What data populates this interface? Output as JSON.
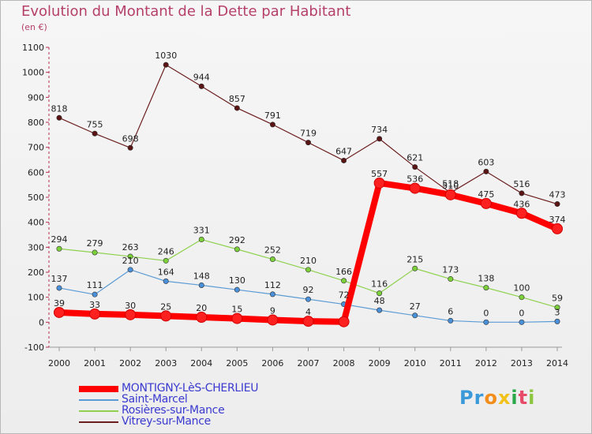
{
  "chart_data": {
    "type": "line",
    "title": "Evolution du Montant de la Dette par Habitant",
    "subtitle": "(en €)",
    "x": [
      "2000",
      "2001",
      "2002",
      "2003",
      "2004",
      "2005",
      "2006",
      "2007",
      "2008",
      "2009",
      "2010",
      "2011",
      "2012",
      "2013",
      "2014"
    ],
    "ylim": [
      -100,
      1100
    ],
    "yticks": [
      "-100",
      "0",
      "100",
      "200",
      "300",
      "400",
      "500",
      "600",
      "700",
      "800",
      "900",
      "1000",
      "1100"
    ],
    "grid": false,
    "legend_position": "bottom-left",
    "series": [
      {
        "name": "MONTIGNY-LèS-CHERLIEU",
        "color": "#ff0000",
        "marker": "#ff2020",
        "values": [
          39,
          33,
          30,
          25,
          20,
          15,
          9,
          4,
          2,
          557,
          536,
          510,
          475,
          436,
          374
        ],
        "labels": [
          "39",
          "33",
          "30",
          "25",
          "20",
          "15",
          "9",
          "4",
          "",
          "557",
          "536",
          "510",
          "475",
          "436",
          "374"
        ]
      },
      {
        "name": "Saint-Marcel",
        "color": "#5b9bd5",
        "marker": "#4a90d9",
        "values": [
          137,
          111,
          210,
          164,
          148,
          130,
          112,
          92,
          72,
          48,
          27,
          6,
          0,
          0,
          3
        ],
        "labels": [
          "137",
          "111",
          "210",
          "164",
          "148",
          "130",
          "112",
          "92",
          "72",
          "48",
          "27",
          "6",
          "0",
          "0",
          "3"
        ]
      },
      {
        "name": "Rosières-sur-Mance",
        "color": "#8fd14f",
        "marker": "#7cd13a",
        "values": [
          294,
          279,
          263,
          246,
          331,
          292,
          252,
          210,
          166,
          116,
          215,
          173,
          138,
          100,
          59
        ],
        "labels": [
          "294",
          "279",
          "263",
          "246",
          "331",
          "292",
          "252",
          "210",
          "166",
          "116",
          "215",
          "173",
          "138",
          "100",
          "59"
        ]
      },
      {
        "name": "Vitrey-sur-Mance",
        "color": "#6b1e1e",
        "marker": "#5a1414",
        "values": [
          818,
          755,
          698,
          1030,
          944,
          857,
          791,
          719,
          647,
          734,
          621,
          518,
          603,
          516,
          473
        ],
        "labels": [
          "818",
          "755",
          "698",
          "1030",
          "944",
          "857",
          "791",
          "719",
          "647",
          "734",
          "621",
          "518",
          "603",
          "516",
          "473"
        ]
      }
    ]
  },
  "logo": {
    "letters": [
      "P",
      "r",
      "o",
      "x",
      "i",
      "t",
      "i"
    ],
    "colors": [
      "#3a9ad9",
      "#3a9ad9",
      "#f28c1a",
      "#f2c21a",
      "#2aa84a",
      "#e84a6a",
      "#8cc63f"
    ]
  }
}
